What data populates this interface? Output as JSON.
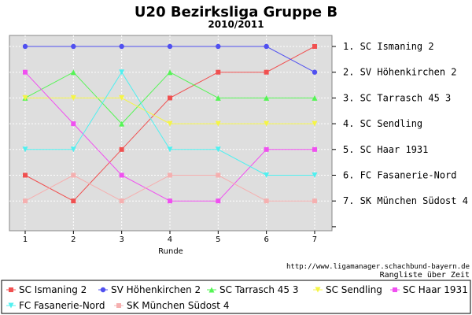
{
  "header": {
    "title": "U20 Bezirksliga Gruppe B",
    "subtitle": "2010/2011"
  },
  "footer": {
    "url": "http://www.ligamanager.schachbund-bayern.de",
    "caption": "Rangliste über Zeit"
  },
  "chart_data": {
    "type": "line",
    "title": "U20 Bezirksliga Gruppe B",
    "subtitle": "2010/2011",
    "xlabel": "Runde",
    "ylabel": "",
    "x": [
      1,
      2,
      3,
      4,
      5,
      6,
      7
    ],
    "xlim": [
      1,
      7
    ],
    "ylim": [
      1,
      7
    ],
    "y_inverted": true,
    "grid": true,
    "legend_position": "bottom",
    "final_ranking": [
      "1. SC Ismaning 2",
      "2. SV Höhenkirchen 2",
      "3. SC Tarrasch 45 3",
      "4. SC Sendling",
      "5. SC Haar 1931",
      "6. FC Fasanerie-Nord",
      "7. SK München Südost 4"
    ],
    "series": [
      {
        "name": "SC Ismaning 2",
        "color": "#f05050",
        "marker": "square",
        "values": [
          6,
          7,
          5,
          3,
          2,
          2,
          1
        ]
      },
      {
        "name": "SV Höhenkirchen 2",
        "color": "#5050f0",
        "marker": "circle",
        "values": [
          1,
          1,
          1,
          1,
          1,
          1,
          2
        ]
      },
      {
        "name": "SC Tarrasch 45 3",
        "color": "#55f555",
        "marker": "triangle-up",
        "values": [
          3,
          2,
          4,
          2,
          3,
          3,
          3
        ]
      },
      {
        "name": "SC Sendling",
        "color": "#f5f545",
        "marker": "triangle-down",
        "values": [
          3,
          3,
          3,
          4,
          4,
          4,
          4
        ]
      },
      {
        "name": "SC Haar 1931",
        "color": "#f050f0",
        "marker": "square",
        "values": [
          2,
          4,
          6,
          7,
          7,
          5,
          5
        ]
      },
      {
        "name": "FC Fasanerie-Nord",
        "color": "#50f0f0",
        "marker": "triangle-down",
        "values": [
          5,
          5,
          2,
          5,
          5,
          6,
          6
        ]
      },
      {
        "name": "SK München Südost 4",
        "color": "#f5b0b0",
        "marker": "square",
        "values": [
          7,
          6,
          7,
          6,
          6,
          7,
          7
        ]
      }
    ]
  }
}
